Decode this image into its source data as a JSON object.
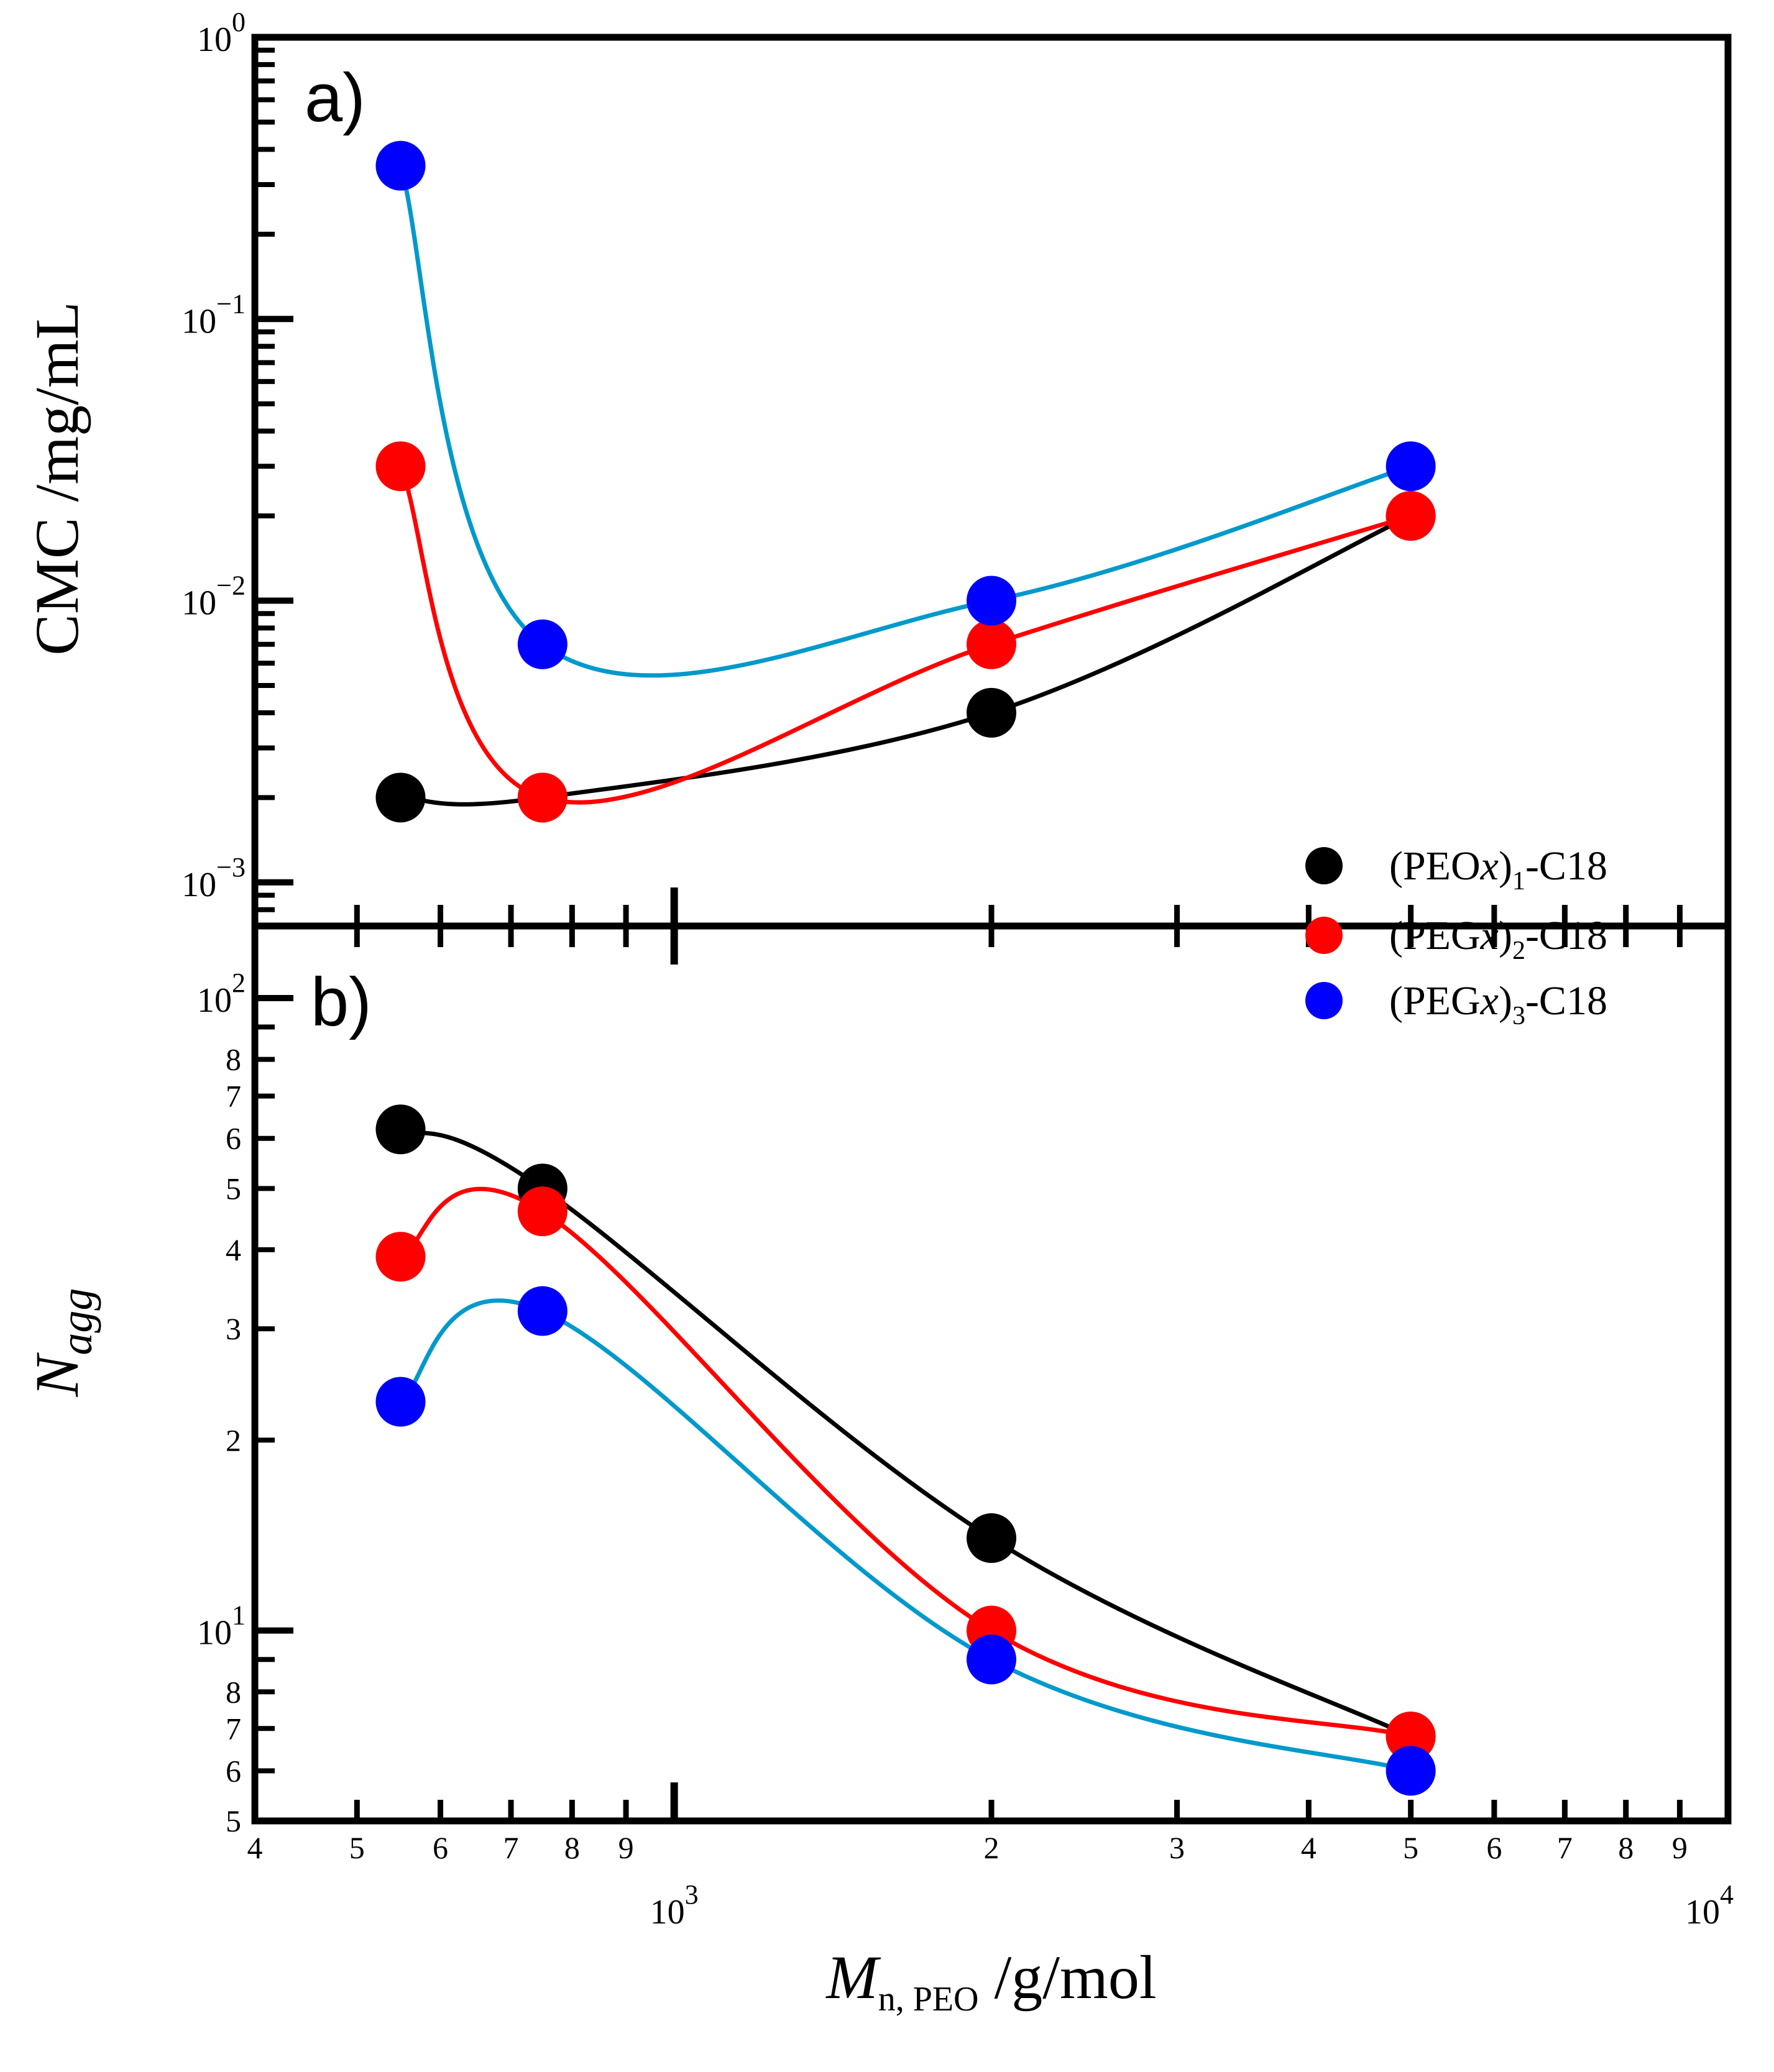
{
  "chart_data": [
    {
      "type": "scatter",
      "panel_label": "a)",
      "ylabel": "CMC /mg/mL",
      "xscale": "log",
      "yscale": "log",
      "xlim": [
        400,
        10000
      ],
      "ylim": [
        0.0007,
        1.0
      ],
      "yticks": [
        {
          "value": 0.001,
          "base": "10",
          "exp": "−3"
        },
        {
          "value": 0.01,
          "base": "10",
          "exp": "−2"
        },
        {
          "value": 0.1,
          "base": "10",
          "exp": "−1"
        },
        {
          "value": 1,
          "base": "10",
          "exp": "0"
        }
      ],
      "series": [
        {
          "name": "(PEOx)1-C18",
          "color": "#000000",
          "line_color": "#000000",
          "x": [
            550,
            750,
            2000,
            5000
          ],
          "y": [
            0.002,
            0.002,
            0.004,
            0.02
          ]
        },
        {
          "name": "(PEGx)2-C18",
          "color": "#ff0000",
          "line_color": "#ff0000",
          "x": [
            550,
            750,
            2000,
            5000
          ],
          "y": [
            0.03,
            0.002,
            0.007,
            0.02
          ]
        },
        {
          "name": "(PEGx)3-C18",
          "color": "#0000ff",
          "line_color": "#0099cc",
          "x": [
            550,
            750,
            2000,
            5000
          ],
          "y": [
            0.35,
            0.007,
            0.01,
            0.03
          ]
        }
      ]
    },
    {
      "type": "scatter",
      "panel_label": "b)",
      "ylabel_main": "N",
      "ylabel_sub": "agg",
      "xlabel_main": "M",
      "xlabel_sub": "n, PEO",
      "xlabel_unit": " /g/mol",
      "xscale": "log",
      "yscale": "log",
      "xlim": [
        400,
        10000
      ],
      "ylim": [
        5,
        130
      ],
      "yticks": [
        {
          "value": 10,
          "base": "10",
          "exp": "1"
        },
        {
          "value": 100,
          "base": "10",
          "exp": "2"
        }
      ],
      "yminor_labels": [
        "5",
        "6",
        "7",
        "8",
        "2",
        "3",
        "4",
        "5",
        "6",
        "7",
        "8"
      ],
      "xticks": [
        {
          "value": 1000,
          "base": "10",
          "exp": "3"
        },
        {
          "value": 10000,
          "base": "10",
          "exp": "4"
        }
      ],
      "xminor_labels": [
        "4",
        "5",
        "6",
        "7",
        "8",
        "9",
        "2",
        "3",
        "4",
        "5",
        "6",
        "7",
        "8",
        "9"
      ],
      "series": [
        {
          "name": "(PEOx)1-C18",
          "color": "#000000",
          "line_color": "#000000",
          "x": [
            550,
            750,
            2000,
            5000
          ],
          "y": [
            62,
            50,
            14,
            6.8
          ]
        },
        {
          "name": "(PEGx)2-C18",
          "color": "#ff0000",
          "line_color": "#ff0000",
          "x": [
            550,
            750,
            2000,
            5000
          ],
          "y": [
            39,
            46,
            10,
            6.8
          ]
        },
        {
          "name": "(PEGx)3-C18",
          "color": "#0000ff",
          "line_color": "#0099cc",
          "x": [
            550,
            750,
            2000,
            5000
          ],
          "y": [
            23,
            32,
            9,
            6
          ]
        }
      ]
    }
  ],
  "legend": {
    "entries": [
      {
        "prefix": "(PEO",
        "var": "x",
        "paren": ")",
        "sub": "1",
        "suffix": "-C18",
        "color": "#000000"
      },
      {
        "prefix": "(PEG",
        "var": "x",
        "paren": ")",
        "sub": "2",
        "suffix": "-C18",
        "color": "#ff0000"
      },
      {
        "prefix": "(PEG",
        "var": "x",
        "paren": ")",
        "sub": "3",
        "suffix": "-C18",
        "color": "#0000ff"
      }
    ]
  }
}
